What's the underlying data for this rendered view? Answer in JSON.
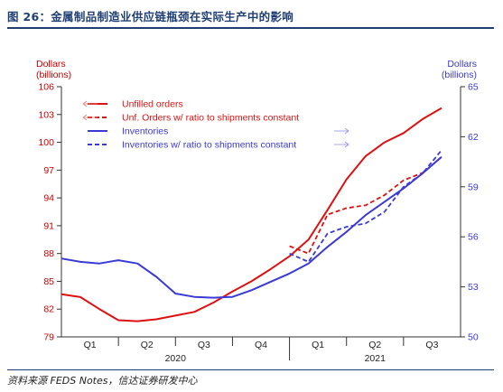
{
  "figure": {
    "title": "图 26：金属制品制造业供应链瓶颈在实际生产中的影响",
    "source": "资料来源 FEDS Notes，信达证券研发中心"
  },
  "chart_data": {
    "type": "line",
    "left_axis": {
      "label_line1": "Dollars",
      "label_line2": "(billions)",
      "ylim": [
        79,
        106
      ],
      "ticks": [
        79,
        82,
        85,
        88,
        91,
        94,
        97,
        100,
        103,
        106
      ],
      "color": "#cc0000"
    },
    "right_axis": {
      "label_line1": "Dollars",
      "label_line2": "(billions)",
      "ylim": [
        50,
        65
      ],
      "ticks": [
        50,
        53,
        56,
        59,
        62,
        65
      ],
      "color": "#3a3ad6"
    },
    "x_axis": {
      "xlim": [
        0,
        21
      ],
      "quarters": [
        {
          "label": "Q1",
          "x": 1.5
        },
        {
          "label": "Q2",
          "x": 4.5
        },
        {
          "label": "Q3",
          "x": 7.5
        },
        {
          "label": "Q4",
          "x": 10.5
        },
        {
          "label": "Q1",
          "x": 13.5
        },
        {
          "label": "Q2",
          "x": 16.5
        },
        {
          "label": "Q3",
          "x": 19.5
        }
      ],
      "quarter_boundaries": [
        3,
        6,
        9,
        12,
        15,
        18
      ],
      "year_boundary": 12,
      "years": [
        {
          "label": "2020",
          "x": 6
        },
        {
          "label": "2021",
          "x": 16.5
        }
      ]
    },
    "series": [
      {
        "name": "Unfilled orders",
        "axis": "left",
        "color": "#dd1111",
        "dash": "solid",
        "x": [
          0,
          1,
          2,
          3,
          4,
          5,
          6,
          7,
          8,
          9,
          10,
          11,
          12,
          13,
          14,
          15,
          16,
          17,
          18,
          19,
          20,
          21
        ],
        "y": [
          83.6,
          83.3,
          82.0,
          80.8,
          80.7,
          80.9,
          81.3,
          81.7,
          82.7,
          83.9,
          85.0,
          86.3,
          87.7,
          89.5,
          92.7,
          96.0,
          98.5,
          100.0,
          101.0,
          102.5,
          103.7,
          null
        ]
      },
      {
        "name": "Unf. Orders w/ ratio to shipments constant",
        "axis": "left",
        "color": "#dd1111",
        "dash": "dashed",
        "x": [
          12,
          13,
          14,
          15,
          16,
          17,
          18,
          19,
          20
        ],
        "y": [
          88.8,
          88.0,
          92.2,
          92.9,
          93.2,
          94.3,
          95.9,
          96.7,
          98.4
        ]
      },
      {
        "name": "Inventories",
        "axis": "right",
        "color": "#3a3ad6",
        "dash": "solid",
        "x": [
          0,
          1,
          2,
          3,
          4,
          5,
          6,
          7,
          8,
          9,
          10,
          11,
          12,
          13,
          14,
          15,
          16,
          17,
          18,
          19,
          20
        ],
        "y": [
          54.7,
          54.5,
          54.4,
          54.6,
          54.4,
          53.6,
          52.6,
          52.4,
          52.35,
          52.4,
          52.8,
          53.3,
          53.8,
          54.4,
          55.4,
          56.3,
          57.3,
          58.1,
          58.9,
          59.8,
          60.8
        ]
      },
      {
        "name": "Inventories w/ ratio to shipments constant",
        "axis": "right",
        "color": "#3a3ad6",
        "dash": "dashed",
        "x": [
          12,
          13,
          14,
          15,
          16,
          17,
          18,
          19,
          20
        ],
        "y": [
          55.0,
          54.5,
          56.2,
          56.6,
          56.8,
          57.5,
          59.0,
          59.8,
          61.2
        ]
      }
    ],
    "legend_placement": "top-left"
  }
}
